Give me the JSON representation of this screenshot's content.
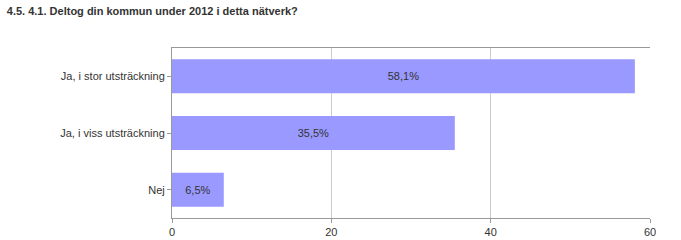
{
  "chart_data": {
    "type": "bar",
    "title": "4.5. 4.1. Deltog din kommun under 2012 i detta nätverk?",
    "categories": [
      "Ja, i stor utsträckning",
      "Ja, i viss utsträckning",
      "Nej"
    ],
    "values": [
      58.1,
      35.5,
      6.5
    ],
    "value_labels": [
      "58,1%",
      "35,5%",
      "6,5%"
    ],
    "color": "#9999ff",
    "orientation": "horizontal",
    "xlim": [
      0,
      60
    ],
    "xticks": [
      0,
      20,
      40,
      60
    ],
    "grid": true,
    "data_labels": true
  }
}
